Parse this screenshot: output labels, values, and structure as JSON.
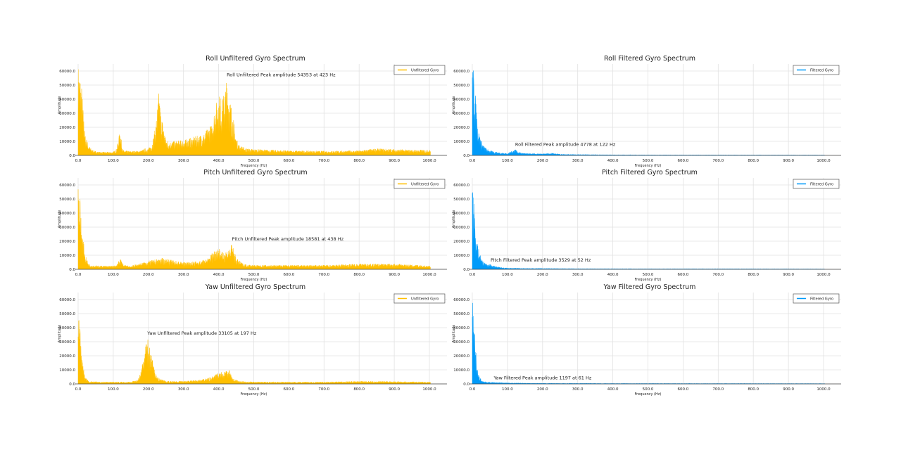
{
  "chart_data": [
    {
      "type": "area",
      "title": "Roll Unfiltered Gyro Spectrum",
      "xlabel": "Frequency (Hz)",
      "ylabel": "Amplitude",
      "xlim": [
        0,
        1050
      ],
      "ylim": [
        0,
        65000
      ],
      "xticks": [
        "0.0",
        "100.0",
        "200.0",
        "300.0",
        "400.0",
        "500.0",
        "600.0",
        "700.0",
        "800.0",
        "900.0",
        "1000.0"
      ],
      "yticks": [
        "0.0",
        "10000.0",
        "20000.0",
        "30000.0",
        "40000.0",
        "50000.0",
        "60000.0"
      ],
      "grid": true,
      "legend": "top-right",
      "series": [
        {
          "name": "Unfiltered Gyro",
          "color": "#FFBF00",
          "x": [
            0,
            5,
            10,
            15,
            20,
            30,
            40,
            50,
            60,
            80,
            100,
            110,
            120,
            125,
            130,
            150,
            180,
            190,
            200,
            210,
            220,
            230,
            235,
            240,
            250,
            260,
            300,
            340,
            360,
            370,
            380,
            390,
            400,
            410,
            420,
            423,
            430,
            440,
            450,
            460,
            480,
            500,
            600,
            700,
            800,
            850,
            900,
            950,
            1000
          ],
          "y": [
            65000,
            60000,
            50000,
            30000,
            15000,
            7000,
            4000,
            3000,
            2500,
            2500,
            2500,
            5000,
            19000,
            6000,
            3500,
            3000,
            3500,
            5000,
            5000,
            8000,
            20000,
            46000,
            32000,
            25000,
            12000,
            10000,
            11000,
            14000,
            16000,
            20000,
            22000,
            35000,
            44000,
            40000,
            50000,
            54353,
            45000,
            30000,
            12000,
            7000,
            5000,
            4500,
            3500,
            3200,
            3500,
            5000,
            4500,
            4000,
            4000
          ]
        }
      ],
      "annotation": {
        "text": "Roll Unfiltered Peak amplitude 54353 at 423 Hz",
        "x": 423,
        "y": 54353
      }
    },
    {
      "type": "area",
      "title": "Roll Filtered Gyro Spectrum",
      "xlabel": "Frequency (Hz)",
      "ylabel": "Amplitude",
      "xlim": [
        0,
        1050
      ],
      "ylim": [
        0,
        65000
      ],
      "xticks": [
        "0.0",
        "100.0",
        "200.0",
        "300.0",
        "400.0",
        "500.0",
        "600.0",
        "700.0",
        "800.0",
        "900.0",
        "1000.0"
      ],
      "yticks": [
        "0.0",
        "10000.0",
        "20000.0",
        "30000.0",
        "40000.0",
        "50000.0",
        "60000.0"
      ],
      "grid": true,
      "legend": "top-right",
      "series": [
        {
          "name": "Filtered Gyro",
          "color": "#009AF9",
          "x": [
            0,
            5,
            10,
            15,
            20,
            30,
            40,
            50,
            60,
            80,
            100,
            115,
            122,
            130,
            150,
            200,
            230,
            250,
            300,
            400,
            500,
            700,
            1000
          ],
          "y": [
            65000,
            60000,
            40000,
            25000,
            15000,
            8000,
            5000,
            3500,
            3000,
            2000,
            1500,
            3500,
            4778,
            2500,
            1500,
            1200,
            1800,
            1000,
            700,
            500,
            400,
            350,
            300
          ]
        }
      ],
      "annotation": {
        "text": "Roll Filtered Peak amplitude 4778 at 122 Hz",
        "x": 122,
        "y": 4778
      }
    },
    {
      "type": "area",
      "title": "Pitch Unfiltered Gyro Spectrum",
      "xlabel": "Frequency (Hz)",
      "ylabel": "Amplitude",
      "xlim": [
        0,
        1050
      ],
      "ylim": [
        0,
        65000
      ],
      "xticks": [
        "0.0",
        "100.0",
        "200.0",
        "300.0",
        "400.0",
        "500.0",
        "600.0",
        "700.0",
        "800.0",
        "900.0",
        "1000.0"
      ],
      "yticks": [
        "0.0",
        "10000.0",
        "20000.0",
        "30000.0",
        "40000.0",
        "50000.0",
        "60000.0"
      ],
      "grid": true,
      "legend": "top-right",
      "series": [
        {
          "name": "Unfiltered Gyro",
          "color": "#FFBF00",
          "x": [
            0,
            5,
            10,
            20,
            30,
            40,
            60,
            100,
            110,
            120,
            130,
            150,
            200,
            240,
            300,
            350,
            370,
            390,
            400,
            410,
            430,
            438,
            450,
            470,
            500,
            600,
            700,
            800,
            900,
            1000
          ],
          "y": [
            65000,
            55000,
            30000,
            10000,
            4000,
            3000,
            2500,
            2500,
            3000,
            8000,
            3000,
            2500,
            6000,
            8000,
            5000,
            6000,
            8000,
            15000,
            16000,
            12000,
            15000,
            18581,
            8000,
            4000,
            3000,
            3000,
            3000,
            4000,
            4000,
            2500
          ]
        }
      ],
      "annotation": {
        "text": "Pitch Unfiltered Peak amplitude 18581 at 438 Hz",
        "x": 438,
        "y": 18581
      }
    },
    {
      "type": "area",
      "title": "Pitch Filtered Gyro Spectrum",
      "xlabel": "Frequency (Hz)",
      "ylabel": "Amplitude",
      "xlim": [
        0,
        1050
      ],
      "ylim": [
        0,
        65000
      ],
      "xticks": [
        "0.0",
        "100.0",
        "200.0",
        "300.0",
        "400.0",
        "500.0",
        "600.0",
        "700.0",
        "800.0",
        "900.0",
        "1000.0"
      ],
      "yticks": [
        "0.0",
        "10000.0",
        "20000.0",
        "30000.0",
        "40000.0",
        "50000.0",
        "60000.0"
      ],
      "grid": true,
      "legend": "top-right",
      "series": [
        {
          "name": "Filtered Gyro",
          "color": "#009AF9",
          "x": [
            0,
            5,
            10,
            20,
            30,
            40,
            52,
            60,
            80,
            100,
            150,
            200,
            300,
            500,
            700,
            1000
          ],
          "y": [
            65000,
            50000,
            25000,
            12000,
            6000,
            4000,
            3529,
            2500,
            1500,
            1000,
            800,
            700,
            500,
            400,
            400,
            300
          ]
        }
      ],
      "annotation": {
        "text": "Pitch Filtered Peak amplitude 3529 at 52 Hz",
        "x": 52,
        "y": 3529
      }
    },
    {
      "type": "area",
      "title": "Yaw Unfiltered Gyro Spectrum",
      "xlabel": "Frequency (Hz)",
      "ylabel": "Amplitude",
      "xlim": [
        0,
        1050
      ],
      "ylim": [
        0,
        65000
      ],
      "xticks": [
        "0.0",
        "100.0",
        "200.0",
        "300.0",
        "400.0",
        "500.0",
        "600.0",
        "700.0",
        "800.0",
        "900.0",
        "1000.0"
      ],
      "yticks": [
        "0.0",
        "10000.0",
        "20000.0",
        "30000.0",
        "40000.0",
        "50000.0",
        "60000.0"
      ],
      "grid": true,
      "legend": "top-right",
      "series": [
        {
          "name": "Unfiltered Gyro",
          "color": "#FFBF00",
          "x": [
            0,
            3,
            10,
            20,
            30,
            60,
            100,
            150,
            170,
            180,
            190,
            197,
            210,
            220,
            230,
            250,
            300,
            350,
            380,
            400,
            420,
            430,
            440,
            460,
            500,
            700,
            800,
            1000
          ],
          "y": [
            65000,
            60000,
            20000,
            5000,
            2000,
            1500,
            1500,
            1500,
            3000,
            10000,
            25000,
            33105,
            20000,
            8000,
            4000,
            2000,
            2000,
            3000,
            5000,
            8000,
            9000,
            10000,
            4000,
            2000,
            1500,
            1500,
            2000,
            1500
          ]
        }
      ],
      "annotation": {
        "text": "Yaw Unfiltered Peak amplitude 33105 at 197 Hz",
        "x": 197,
        "y": 33105
      }
    },
    {
      "type": "area",
      "title": "Yaw Filtered Gyro Spectrum",
      "xlabel": "Frequency (Hz)",
      "ylabel": "Amplitude",
      "xlim": [
        0,
        1050
      ],
      "ylim": [
        0,
        65000
      ],
      "xticks": [
        "0.0",
        "100.0",
        "200.0",
        "300.0",
        "400.0",
        "500.0",
        "600.0",
        "700.0",
        "800.0",
        "900.0",
        "1000.0"
      ],
      "yticks": [
        "0.0",
        "10000.0",
        "20000.0",
        "30000.0",
        "40000.0",
        "50000.0",
        "60000.0"
      ],
      "grid": true,
      "legend": "top-right",
      "series": [
        {
          "name": "Filtered Gyro",
          "color": "#009AF9",
          "x": [
            0,
            3,
            8,
            15,
            20,
            30,
            40,
            61,
            100,
            200,
            400,
            1000
          ],
          "y": [
            65000,
            60000,
            30000,
            10000,
            5000,
            2000,
            1500,
            1197,
            800,
            500,
            400,
            300
          ]
        }
      ],
      "annotation": {
        "text": "Yaw Filtered Peak amplitude 1197 at 61 Hz",
        "x": 61,
        "y": 1197
      }
    }
  ]
}
